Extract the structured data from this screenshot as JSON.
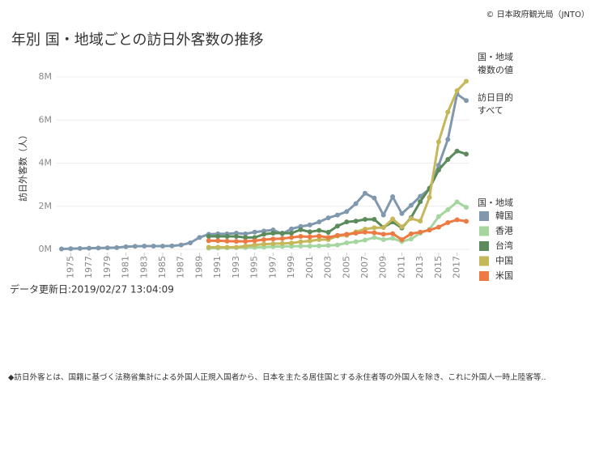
{
  "chart_data": {
    "type": "line",
    "title": "年別 国・地域ごとの訪日外客数の推移",
    "source": "© 日本政府観光局（JNTO）",
    "y_label": "訪日外客数（人）",
    "filters": [
      {
        "label": "国・地域",
        "value": "複数の値"
      },
      {
        "label": "訪日目的",
        "value": "すべて"
      }
    ],
    "legend_title": "国・地域",
    "legend": "right",
    "grid": true,
    "updated": "データ更新日:2019/02/27 13:04:09",
    "note": "◆訪日外客とは、国籍に基づく法務省集計による外国人正規入国者から、日本を主たる居住国とする永住者等の外国人を除き、これに外国人一時上陸客等..",
    "x": [
      1974,
      1975,
      1976,
      1977,
      1978,
      1979,
      1980,
      1981,
      1982,
      1983,
      1984,
      1985,
      1986,
      1987,
      1988,
      1989,
      1990,
      1991,
      1992,
      1993,
      1994,
      1995,
      1996,
      1997,
      1998,
      1999,
      2000,
      2001,
      2002,
      2003,
      2004,
      2005,
      2006,
      2007,
      2008,
      2009,
      2010,
      2011,
      2012,
      2013,
      2014,
      2015,
      2016,
      2017,
      2018
    ],
    "xlim": [
      1974,
      2018
    ],
    "xticks": [
      1975,
      1977,
      1979,
      1981,
      1983,
      1985,
      1987,
      1989,
      1991,
      1993,
      1995,
      1997,
      1999,
      2001,
      2003,
      2005,
      2007,
      2009,
      2011,
      2013,
      2015,
      2017
    ],
    "ylim": [
      0,
      8
    ],
    "yticks": [
      {
        "value": 0,
        "label": "0M"
      },
      {
        "value": 2,
        "label": "2M"
      },
      {
        "value": 4,
        "label": "4M"
      },
      {
        "value": 6,
        "label": "6M"
      },
      {
        "value": 8,
        "label": "8M"
      }
    ],
    "series": [
      {
        "name": "韓国",
        "color": "#7f98ad",
        "values": [
          0.02,
          0.03,
          0.04,
          0.05,
          0.06,
          0.07,
          0.08,
          0.12,
          0.14,
          0.15,
          0.15,
          0.15,
          0.16,
          0.2,
          0.3,
          0.55,
          0.7,
          0.72,
          0.72,
          0.75,
          0.72,
          0.8,
          0.85,
          0.9,
          0.72,
          0.95,
          1.06,
          1.13,
          1.27,
          1.46,
          1.59,
          1.75,
          2.12,
          2.6,
          2.38,
          1.59,
          2.44,
          1.66,
          2.04,
          2.46,
          2.8,
          3.9,
          5.1,
          7.2,
          6.9
        ]
      },
      {
        "name": "香港",
        "color": "#a5d6a0",
        "values": [
          null,
          null,
          null,
          null,
          null,
          null,
          null,
          null,
          null,
          null,
          null,
          null,
          null,
          null,
          null,
          null,
          0.05,
          0.06,
          0.07,
          0.08,
          0.08,
          0.09,
          0.1,
          0.12,
          0.13,
          0.14,
          0.15,
          0.15,
          0.16,
          0.18,
          0.2,
          0.3,
          0.35,
          0.43,
          0.55,
          0.45,
          0.51,
          0.36,
          0.48,
          0.75,
          0.93,
          1.52,
          1.84,
          2.2,
          1.95
        ]
      },
      {
        "name": "台湾",
        "color": "#5b8a5b",
        "values": [
          null,
          null,
          null,
          null,
          null,
          null,
          null,
          null,
          null,
          null,
          null,
          null,
          null,
          null,
          null,
          null,
          0.6,
          0.6,
          0.6,
          0.6,
          0.55,
          0.55,
          0.7,
          0.75,
          0.75,
          0.75,
          0.91,
          0.81,
          0.88,
          0.79,
          1.08,
          1.27,
          1.31,
          1.39,
          1.39,
          1.02,
          1.27,
          0.99,
          1.47,
          2.21,
          2.83,
          3.68,
          4.17,
          4.56,
          4.42
        ]
      },
      {
        "name": "中国",
        "color": "#c4b85b",
        "values": [
          null,
          null,
          null,
          null,
          null,
          null,
          null,
          null,
          null,
          null,
          null,
          null,
          null,
          null,
          null,
          null,
          0.1,
          0.1,
          0.1,
          0.1,
          0.15,
          0.2,
          0.24,
          0.26,
          0.27,
          0.29,
          0.35,
          0.39,
          0.45,
          0.45,
          0.62,
          0.65,
          0.81,
          0.94,
          1.0,
          1.01,
          1.41,
          1.04,
          1.43,
          1.31,
          2.41,
          4.99,
          6.37,
          7.36,
          7.8
        ]
      },
      {
        "name": "米国",
        "color": "#ec7a42",
        "values": [
          null,
          null,
          null,
          null,
          null,
          null,
          null,
          null,
          null,
          null,
          null,
          null,
          null,
          null,
          null,
          null,
          0.4,
          0.4,
          0.38,
          0.37,
          0.37,
          0.4,
          0.45,
          0.48,
          0.5,
          0.55,
          0.6,
          0.58,
          0.62,
          0.55,
          0.65,
          0.7,
          0.75,
          0.8,
          0.77,
          0.7,
          0.73,
          0.45,
          0.72,
          0.8,
          0.89,
          1.03,
          1.24,
          1.37,
          1.3
        ]
      }
    ]
  }
}
